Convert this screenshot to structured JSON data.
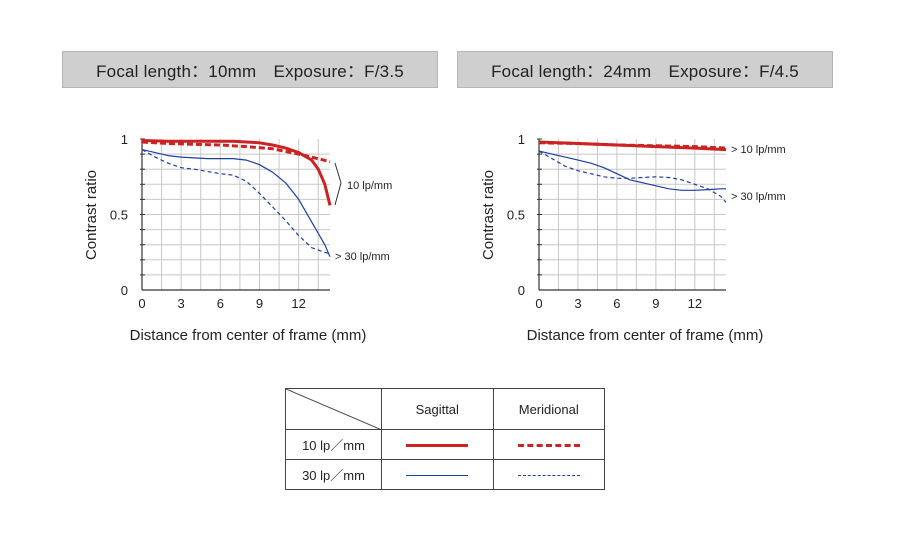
{
  "charts": [
    {
      "banner": "Focal length：10mm　Exposure：F/3.5"
    },
    {
      "banner": "Focal length：24mm　Exposure：F/4.5"
    }
  ],
  "legend": {
    "col_sagittal": "Sagittal",
    "col_meridional": "Meridional",
    "row_10": "10 lp／mm",
    "row_30": "30 lp／mm"
  },
  "colors": {
    "red": "#cc2222",
    "blue": "#1f3f9e"
  },
  "chart_data": [
    {
      "type": "line",
      "title": "Focal length：10mm　Exposure：F/3.5",
      "xlabel": "Distance from center of frame (mm)",
      "ylabel": "Contrast ratio",
      "xlim": [
        0,
        14.4
      ],
      "ylim": [
        0,
        1
      ],
      "xticks": [
        0,
        3,
        6,
        9,
        12
      ],
      "yticks": [
        0,
        0.5,
        1
      ],
      "grid": true,
      "annotations": [
        "10 lp/mm",
        "> 30 lp/mm"
      ],
      "series": [
        {
          "freq": "10",
          "style": "sagittal",
          "x": [
            0,
            2,
            4,
            6,
            7,
            8,
            9,
            10,
            11,
            12,
            13,
            13.5,
            14,
            14.4
          ],
          "y": [
            0.99,
            0.985,
            0.985,
            0.985,
            0.985,
            0.98,
            0.975,
            0.96,
            0.94,
            0.91,
            0.86,
            0.8,
            0.7,
            0.56
          ]
        },
        {
          "freq": "10",
          "style": "meridional",
          "x": [
            0,
            2,
            4,
            6,
            8,
            10,
            12,
            13,
            14.4
          ],
          "y": [
            0.98,
            0.97,
            0.965,
            0.96,
            0.95,
            0.935,
            0.9,
            0.88,
            0.85
          ]
        },
        {
          "freq": "30",
          "style": "sagittal",
          "x": [
            0,
            1,
            2,
            3,
            4,
            5,
            6,
            7,
            8,
            9,
            10,
            11,
            12,
            13,
            14,
            14.4
          ],
          "y": [
            0.93,
            0.91,
            0.89,
            0.88,
            0.875,
            0.87,
            0.87,
            0.87,
            0.86,
            0.83,
            0.78,
            0.71,
            0.6,
            0.45,
            0.3,
            0.22
          ]
        },
        {
          "freq": "30",
          "style": "meridional",
          "x": [
            0,
            1,
            2,
            3,
            4,
            5,
            6,
            7,
            8,
            9,
            10,
            11,
            12,
            13,
            14,
            14.4
          ],
          "y": [
            0.93,
            0.88,
            0.84,
            0.81,
            0.8,
            0.785,
            0.77,
            0.76,
            0.72,
            0.64,
            0.55,
            0.46,
            0.36,
            0.28,
            0.25,
            0.24
          ]
        }
      ]
    },
    {
      "type": "line",
      "title": "Focal length：24mm　Exposure：F/4.5",
      "xlabel": "Distance from center of frame (mm)",
      "ylabel": "Contrast ratio",
      "xlim": [
        0,
        14.4
      ],
      "ylim": [
        0,
        1
      ],
      "xticks": [
        0,
        3,
        6,
        9,
        12
      ],
      "yticks": [
        0,
        0.5,
        1
      ],
      "grid": true,
      "annotations": [
        "> 10 lp/mm",
        "> 30 lp/mm"
      ],
      "series": [
        {
          "freq": "10",
          "style": "sagittal",
          "x": [
            0,
            3,
            6,
            9,
            12,
            14.4
          ],
          "y": [
            0.98,
            0.97,
            0.96,
            0.95,
            0.94,
            0.93
          ]
        },
        {
          "freq": "10",
          "style": "meridional",
          "x": [
            0,
            3,
            6,
            9,
            12,
            14.4
          ],
          "y": [
            0.975,
            0.97,
            0.96,
            0.955,
            0.95,
            0.94
          ]
        },
        {
          "freq": "30",
          "style": "sagittal",
          "x": [
            0,
            1,
            2,
            3,
            4,
            5,
            6,
            7,
            8,
            9,
            10,
            11,
            12,
            13,
            14,
            14.4
          ],
          "y": [
            0.92,
            0.9,
            0.88,
            0.86,
            0.84,
            0.81,
            0.77,
            0.73,
            0.71,
            0.69,
            0.67,
            0.66,
            0.66,
            0.665,
            0.67,
            0.67
          ]
        },
        {
          "freq": "30",
          "style": "meridional",
          "x": [
            0,
            1,
            2,
            3,
            4,
            5,
            6,
            7,
            8,
            9,
            10,
            11,
            12,
            13,
            14,
            14.4
          ],
          "y": [
            0.92,
            0.87,
            0.82,
            0.79,
            0.77,
            0.75,
            0.74,
            0.74,
            0.745,
            0.75,
            0.745,
            0.73,
            0.7,
            0.67,
            0.62,
            0.58
          ]
        }
      ]
    }
  ]
}
